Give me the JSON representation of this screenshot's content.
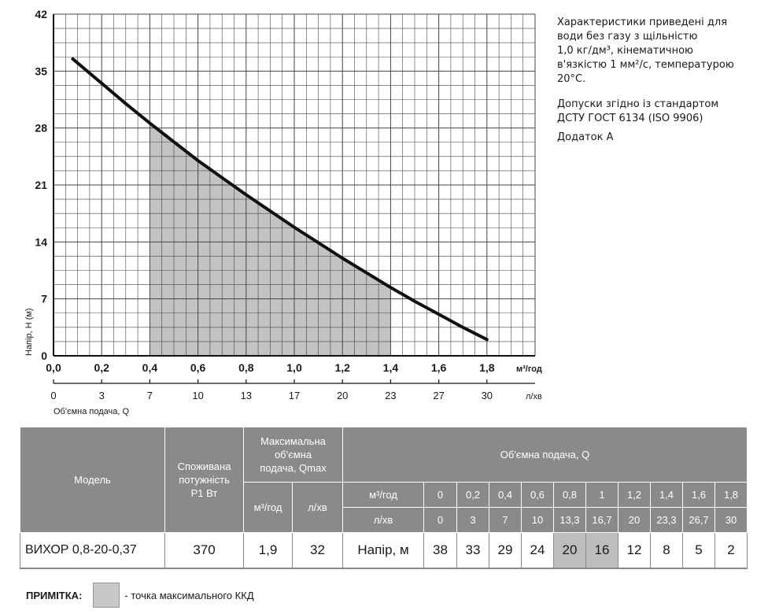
{
  "chart_data": {
    "type": "line",
    "ylabel": "Напір, Н (м)",
    "xlabel": "Об'ємна подача, Q",
    "x_unit": "м³/год",
    "x2_unit": "л/хв",
    "xlim": [
      0,
      2.0
    ],
    "ylim": [
      0,
      42
    ],
    "x_ticks": [
      "0,0",
      "0,2",
      "0,4",
      "0,6",
      "0,8",
      "1,0",
      "1,2",
      "1,4",
      "1,6",
      "1,8"
    ],
    "x2_ticks": [
      "0",
      "3",
      "7",
      "10",
      "13",
      "17",
      "20",
      "23",
      "27",
      "30"
    ],
    "y_ticks": [
      "0",
      "7",
      "14",
      "21",
      "28",
      "35",
      "42"
    ],
    "grid": true,
    "series": [
      {
        "x": [
          0.08,
          0.2,
          0.3,
          0.4,
          0.5,
          0.6,
          0.7,
          0.8,
          0.9,
          1.0,
          1.1,
          1.2,
          1.3,
          1.4,
          1.5,
          1.6,
          1.7,
          1.8
        ],
        "y": [
          36.5,
          33.5,
          31.0,
          28.6,
          26.3,
          24.0,
          21.9,
          19.8,
          17.8,
          15.8,
          13.9,
          12.0,
          10.2,
          8.4,
          6.7,
          5.1,
          3.5,
          2.0
        ]
      }
    ],
    "shaded_range": [
      0.4,
      1.4
    ]
  },
  "notes": {
    "lines1": [
      "Характеристики приведені для",
      "води без газу з щільністю",
      "1,0 кг/дм³, кінематичною",
      "в'язкістю 1 мм²/с, температурою",
      "20°С."
    ],
    "lines2": [
      "Допуски згідно із стандартом",
      "ДСТУ ГОСТ 6134 (ISO 9906)"
    ],
    "line3": "Додаток А"
  },
  "table": {
    "model_header": "Модель",
    "power_header": [
      "Споживана",
      "потужність",
      "Р1 Вт"
    ],
    "qmax_header": [
      "Максимальна",
      "об'ємна",
      "подача, Qmax"
    ],
    "qmax_unit1": "м³/год",
    "qmax_unit2": "л/хв",
    "q_header": "Об'ємна подача, Q",
    "row_unit1": "м³/год",
    "row_unit2": "л/хв",
    "q_m3h": [
      "0",
      "0,2",
      "0,4",
      "0,6",
      "0,8",
      "1",
      "1,2",
      "1,4",
      "1,6",
      "1,8"
    ],
    "q_lmin": [
      "0",
      "3",
      "7",
      "10",
      "13,3",
      "16,7",
      "20",
      "23,3",
      "26,7",
      "30"
    ],
    "row": {
      "model": "ВИХОР 0,8-20-0,37",
      "power": "370",
      "qmax_m3h": "1,9",
      "qmax_lmin": "32",
      "head_label": "Напір, м",
      "heads": [
        "38",
        "33",
        "29",
        "24",
        "20",
        "16",
        "12",
        "8",
        "5",
        "2"
      ],
      "highlight_indices": [
        4,
        5
      ]
    }
  },
  "legend_note": {
    "label": "ПРИМІТКА:",
    "text": "- точка максимального ККД"
  },
  "colors": {
    "grid": "#444444",
    "curve": "#111111",
    "shade": "#b8b8b8",
    "header_bg": "#8a8a8a",
    "highlight": "#bdbdbd"
  }
}
